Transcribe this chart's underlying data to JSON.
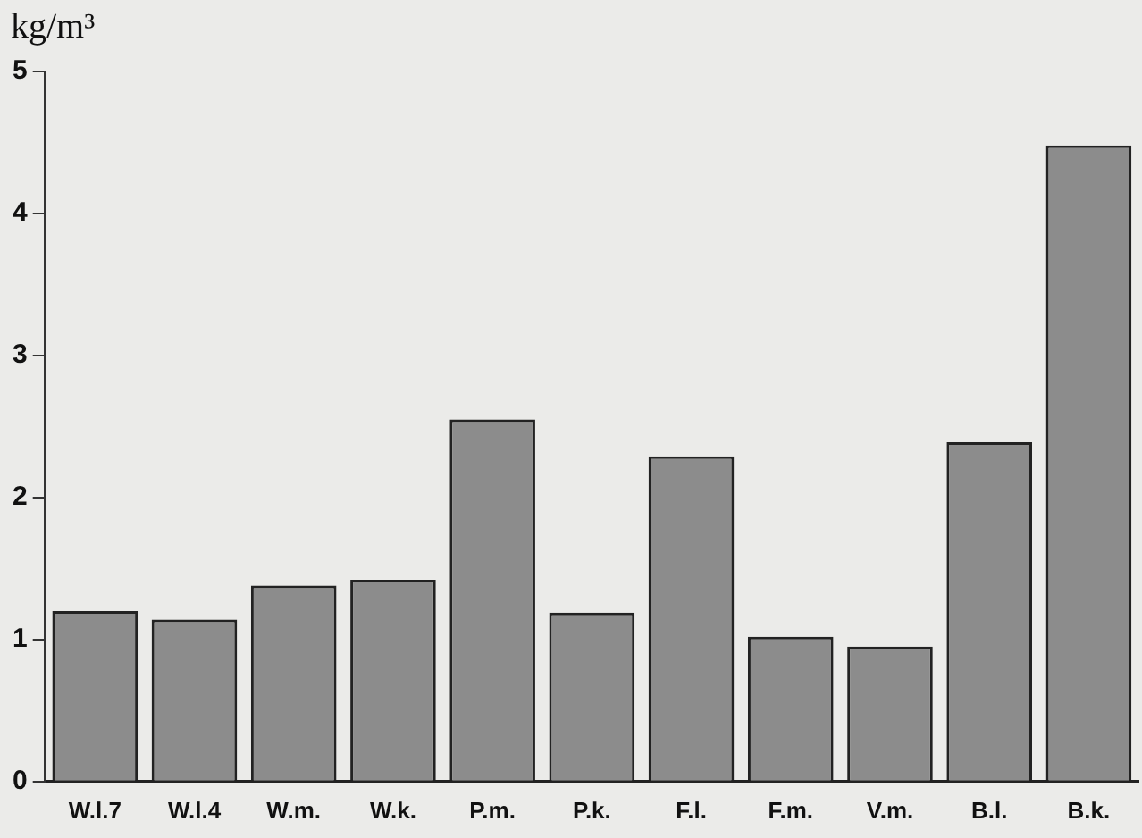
{
  "chart_data": {
    "type": "bar",
    "ylabel": "kg/m³",
    "categories": [
      "W.l.7",
      "W.l.4",
      "W.m.",
      "W.k.",
      "P.m.",
      "P.k.",
      "F.l.",
      "F.m.",
      "V.m.",
      "B.l.",
      "B.k."
    ],
    "values": [
      1.2,
      1.14,
      1.38,
      1.42,
      2.55,
      1.19,
      2.29,
      1.02,
      0.95,
      2.39,
      4.48
    ],
    "color": "#8c8c8c",
    "ylim": [
      0,
      5
    ],
    "yticks": [
      0,
      1,
      2,
      3,
      4,
      5
    ],
    "grid": false,
    "legend": false
  }
}
